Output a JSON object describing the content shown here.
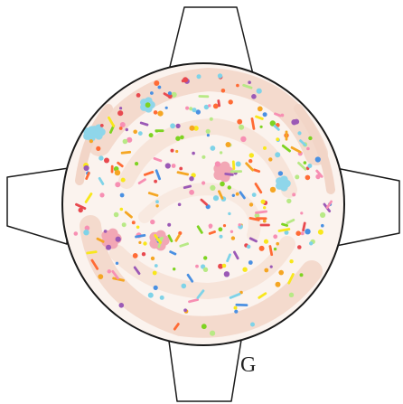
{
  "figure": {
    "label": "G",
    "outline_color": "#1a1a1a",
    "plate_fill": "#fbf3ee",
    "frosting_swirl_color": "#f4d9cc",
    "sprinkle_colors": [
      "#f5a623",
      "#e8494f",
      "#4a90e2",
      "#7ed321",
      "#f8e71c",
      "#f78fb3",
      "#7fd3e8",
      "#b8e986",
      "#ff6b35",
      "#9b59b6"
    ],
    "flower_colors": [
      "#f2a7b5",
      "#8fd6ea"
    ]
  }
}
